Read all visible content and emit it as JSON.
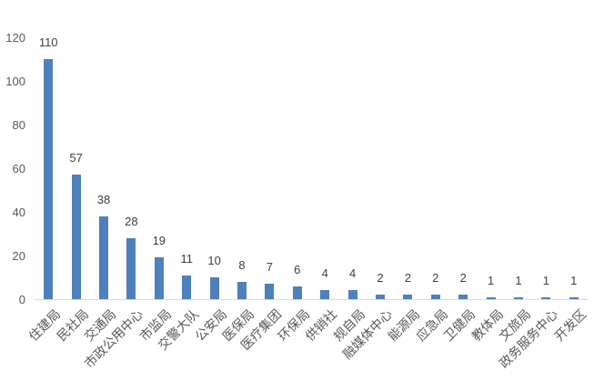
{
  "chart_data": {
    "type": "bar",
    "categories": [
      "住建局",
      "民社局",
      "交通局",
      "市政公用中心",
      "市监局",
      "交警大队",
      "公安局",
      "医保局",
      "医疗集团",
      "环保局",
      "供销社",
      "规自局",
      "融媒体中心",
      "能源局",
      "应急局",
      "卫健局",
      "教体局",
      "文旅局",
      "政务服务中心",
      "开发区"
    ],
    "values": [
      110,
      57,
      38,
      28,
      19,
      11,
      10,
      8,
      7,
      6,
      4,
      4,
      2,
      2,
      2,
      2,
      1,
      1,
      1,
      1
    ],
    "title": "",
    "xlabel": "",
    "ylabel": "",
    "ylim": [
      0,
      120
    ],
    "yticks": [
      0,
      20,
      40,
      60,
      80,
      100,
      120
    ],
    "grid": false,
    "legend": false,
    "data_labels": true,
    "category_label_rotation": 45,
    "colors": {
      "bar": "#4e80bc",
      "axis_line": "#d9d9d9",
      "tick_label": "#595959",
      "value_label": "#404040",
      "category_label": "#595959",
      "background": "#ffffff"
    }
  }
}
